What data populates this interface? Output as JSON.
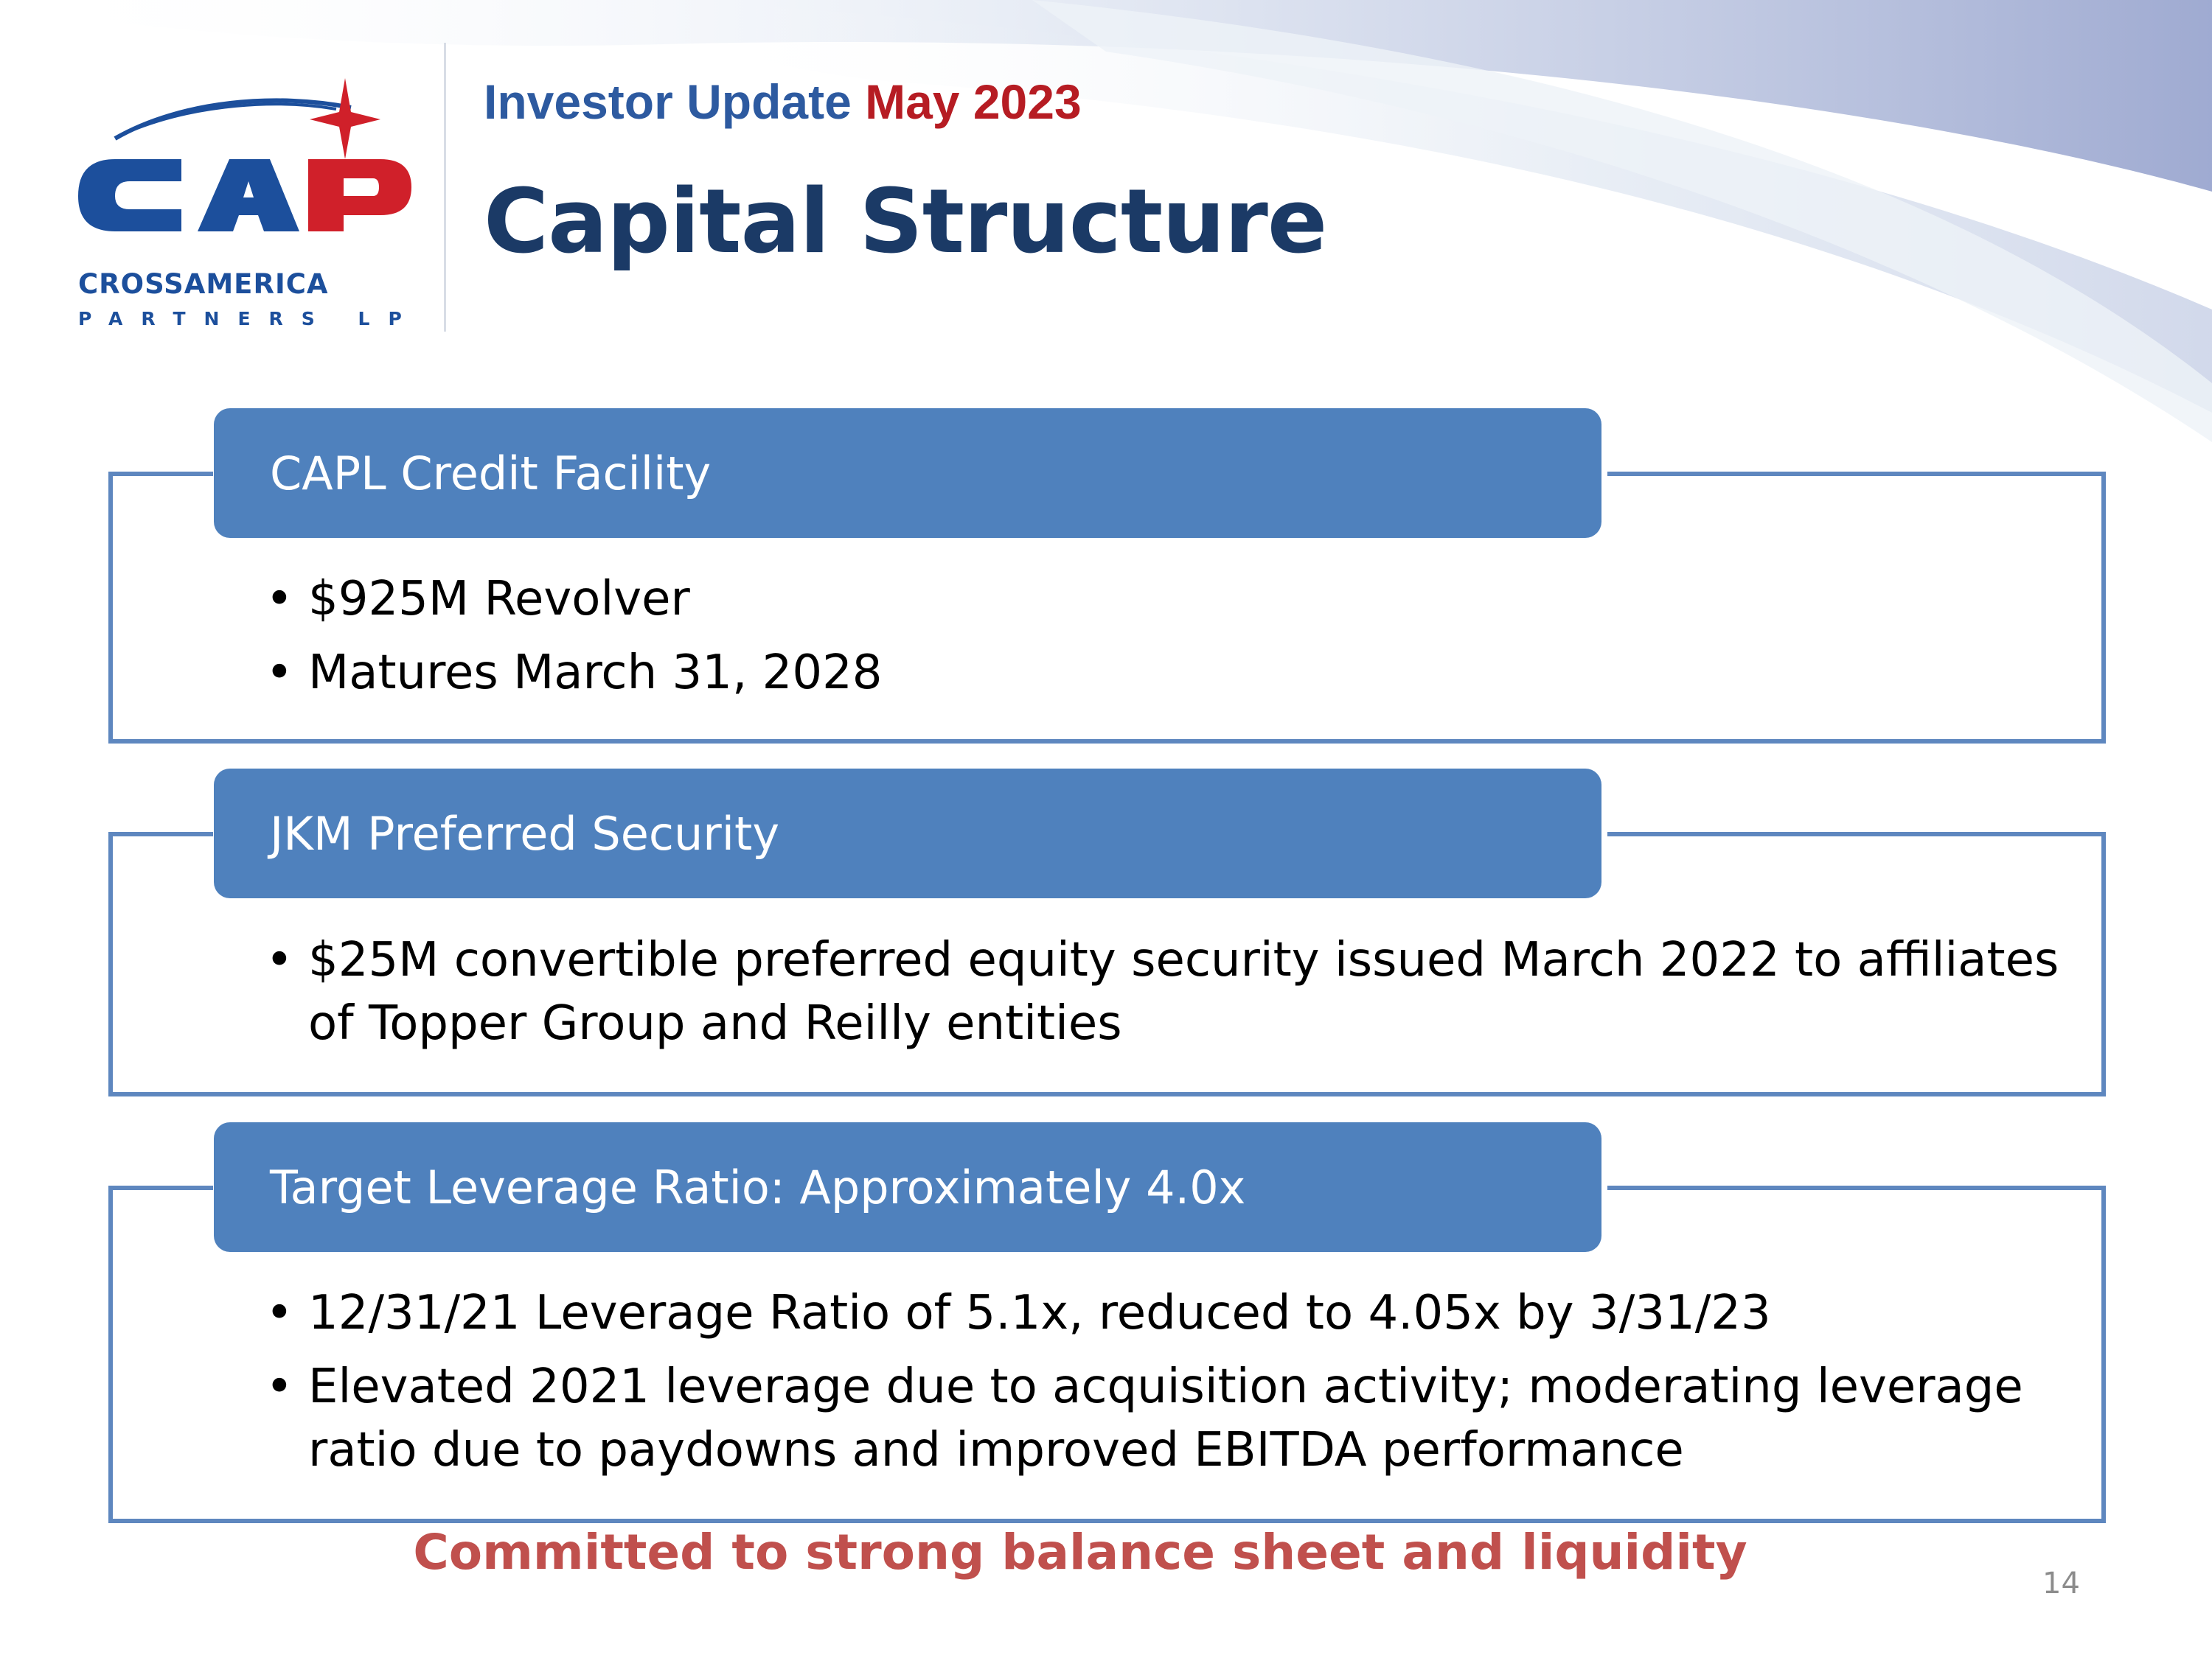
{
  "header": {
    "kicker_text": "Investor Update",
    "kicker_date": "May 2023",
    "title": "Capital Structure"
  },
  "logo": {
    "mark": "CAP",
    "name": "CROSSAMERICA",
    "sub": "PARTNERS LP",
    "colors": {
      "blue": "#1c4f9c",
      "red": "#d0202a"
    }
  },
  "sections": [
    {
      "heading": "CAPL Credit Facility",
      "bullets": [
        "$925M Revolver",
        "Matures March 31, 2028"
      ]
    },
    {
      "heading": "JKM Preferred Security",
      "bullets": [
        "$25M convertible preferred equity security issued March 2022 to affiliates of Topper Group and Reilly entities"
      ]
    },
    {
      "heading": "Target Leverage Ratio: Approximately 4.0x",
      "bullets": [
        "12/31/21 Leverage Ratio of 5.1x, reduced to 4.05x by 3/31/23",
        "Elevated 2021 leverage due to acquisition activity; moderating leverage ratio due to paydowns and improved EBITDA performance"
      ]
    }
  ],
  "footer": {
    "note": "Committed to strong balance sheet and liquidity",
    "page_number": "14"
  },
  "colors": {
    "header_bar": "#4f81bd",
    "frame": "#5e87bf",
    "title": "#1b3a66",
    "accent_red": "#b61c23",
    "footer_note": "#c0504d"
  }
}
